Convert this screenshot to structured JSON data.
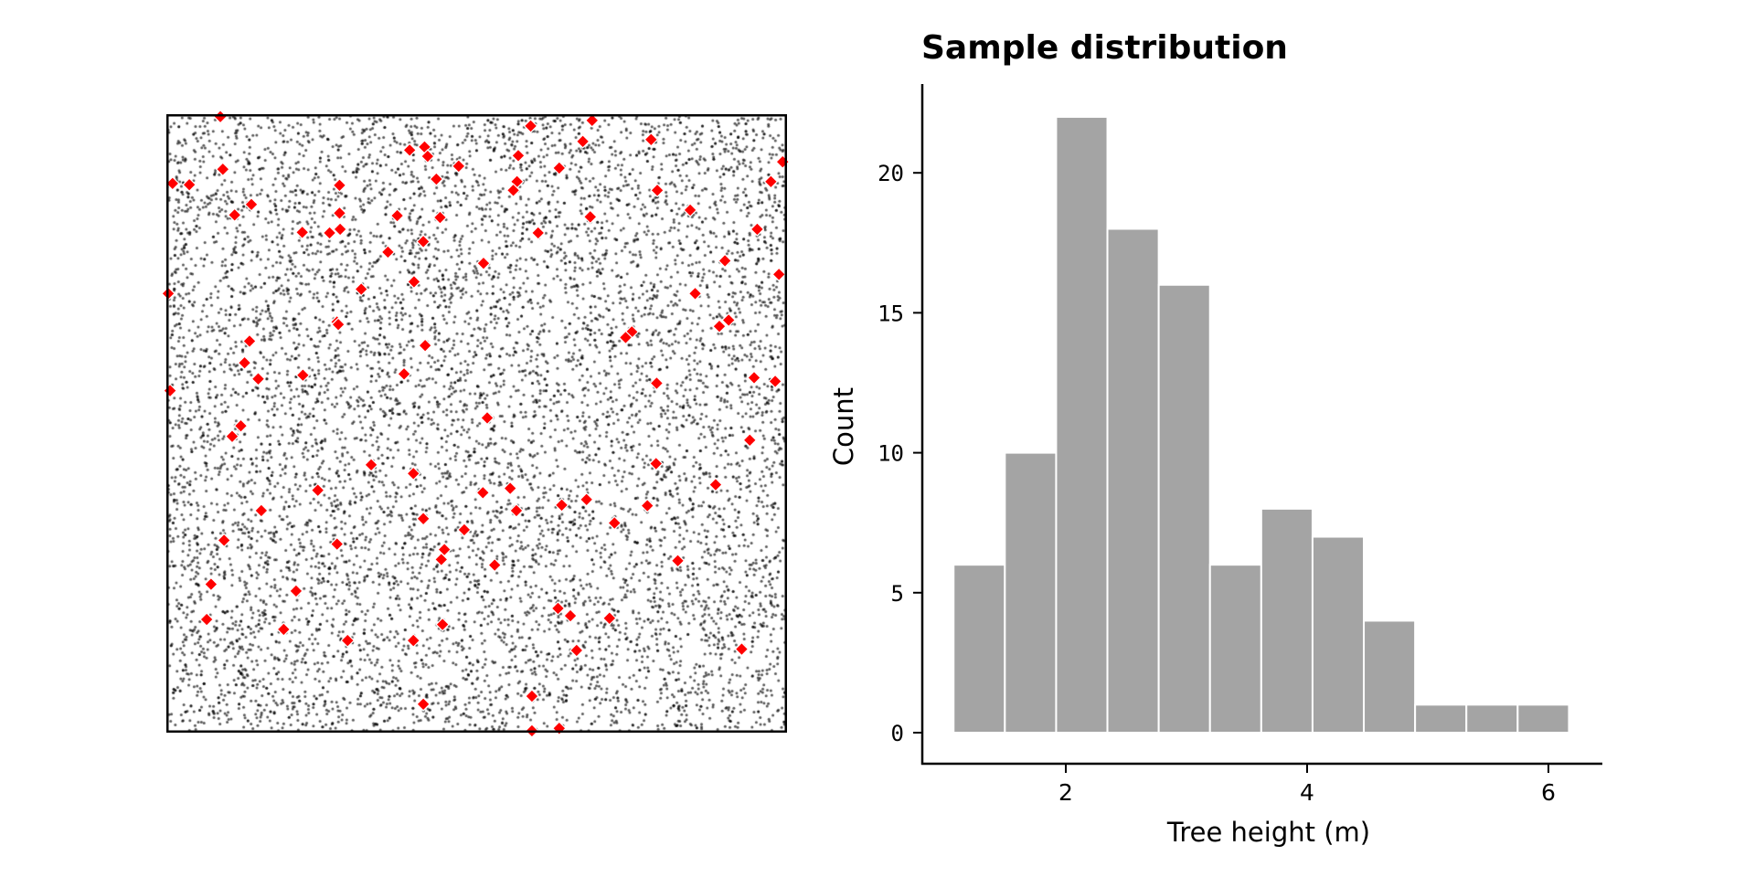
{
  "chart_data": [
    {
      "type": "scatter",
      "title": "",
      "xlabel": "",
      "ylabel": "",
      "xlim": [
        0,
        1
      ],
      "ylim": [
        0,
        1
      ],
      "axes_ticks": false,
      "background_points": {
        "description_count_approx": 9000,
        "color": "#000000",
        "opacity": 0.65
      },
      "series": [
        {
          "name": "sampled trees",
          "marker": "diamond",
          "color": "#ff0000",
          "edgecolor": "#ffffff",
          "points": [
            [
              0.087,
              0.996
            ],
            [
              0.392,
              0.942
            ],
            [
              0.416,
              0.947
            ],
            [
              0.421,
              0.932
            ],
            [
              0.471,
              0.916
            ],
            [
              0.091,
              0.911
            ],
            [
              0.01,
              0.888
            ],
            [
              0.037,
              0.886
            ],
            [
              0.279,
              0.885
            ],
            [
              0.435,
              0.895
            ],
            [
              0.137,
              0.854
            ],
            [
              0.11,
              0.837
            ],
            [
              0.279,
              0.84
            ],
            [
              0.372,
              0.836
            ],
            [
              0.441,
              0.833
            ],
            [
              0.219,
              0.809
            ],
            [
              0.263,
              0.808
            ],
            [
              0.28,
              0.814
            ],
            [
              0.414,
              0.794
            ],
            [
              0.357,
              0.777
            ],
            [
              0.399,
              0.729
            ],
            [
              0.314,
              0.717
            ],
            [
              0.003,
              0.71
            ],
            [
              0.275,
              0.664
            ],
            [
              0.277,
              0.66
            ],
            [
              0.134,
              0.633
            ],
            [
              0.417,
              0.626
            ],
            [
              0.126,
              0.598
            ],
            [
              0.148,
              0.572
            ],
            [
              0.22,
              0.578
            ],
            [
              0.383,
              0.58
            ],
            [
              0.006,
              0.553
            ],
            [
              0.587,
              0.981
            ],
            [
              0.686,
              0.99
            ],
            [
              0.671,
              0.956
            ],
            [
              0.781,
              0.959
            ],
            [
              0.567,
              0.933
            ],
            [
              0.633,
              0.913
            ],
            [
              0.993,
              0.923
            ],
            [
              0.565,
              0.891
            ],
            [
              0.559,
              0.877
            ],
            [
              0.791,
              0.877
            ],
            [
              0.974,
              0.891
            ],
            [
              0.844,
              0.845
            ],
            [
              0.683,
              0.834
            ],
            [
              0.952,
              0.814
            ],
            [
              0.599,
              0.808
            ],
            [
              0.511,
              0.759
            ],
            [
              0.9,
              0.763
            ],
            [
              0.987,
              0.741
            ],
            [
              0.852,
              0.71
            ],
            [
              0.906,
              0.667
            ],
            [
              0.891,
              0.657
            ],
            [
              0.75,
              0.648
            ],
            [
              0.74,
              0.639
            ],
            [
              0.79,
              0.565
            ],
            [
              0.947,
              0.574
            ],
            [
              0.981,
              0.568
            ],
            [
              0.517,
              0.509
            ],
            [
              0.12,
              0.496
            ],
            [
              0.106,
              0.479
            ],
            [
              0.33,
              0.433
            ],
            [
              0.398,
              0.419
            ],
            [
              0.244,
              0.392
            ],
            [
              0.153,
              0.359
            ],
            [
              0.414,
              0.346
            ],
            [
              0.48,
              0.328
            ],
            [
              0.093,
              0.311
            ],
            [
              0.275,
              0.305
            ],
            [
              0.448,
              0.296
            ],
            [
              0.443,
              0.28
            ],
            [
              0.072,
              0.24
            ],
            [
              0.209,
              0.229
            ],
            [
              0.065,
              0.183
            ],
            [
              0.189,
              0.167
            ],
            [
              0.292,
              0.149
            ],
            [
              0.398,
              0.149
            ],
            [
              0.445,
              0.175
            ],
            [
              0.414,
              0.046
            ],
            [
              0.94,
              0.473
            ],
            [
              0.789,
              0.435
            ],
            [
              0.885,
              0.401
            ],
            [
              0.51,
              0.388
            ],
            [
              0.554,
              0.395
            ],
            [
              0.564,
              0.359
            ],
            [
              0.637,
              0.368
            ],
            [
              0.677,
              0.377
            ],
            [
              0.775,
              0.367
            ],
            [
              0.722,
              0.339
            ],
            [
              0.529,
              0.271
            ],
            [
              0.824,
              0.278
            ],
            [
              0.631,
              0.201
            ],
            [
              0.651,
              0.189
            ],
            [
              0.714,
              0.185
            ],
            [
              0.661,
              0.133
            ],
            [
              0.927,
              0.135
            ],
            [
              0.589,
              0.059
            ],
            [
              0.589,
              0.003
            ],
            [
              0.633,
              0.007
            ]
          ]
        }
      ]
    },
    {
      "type": "bar",
      "subtype": "histogram",
      "title": "Sample distribution",
      "xlabel": "Tree height (m)",
      "ylabel": "Count",
      "bin_start": 1.07,
      "bin_width": 0.425,
      "values": [
        6,
        10,
        22,
        18,
        16,
        6,
        8,
        7,
        4,
        1,
        1,
        1
      ],
      "xlim": [
        0.8,
        6.6
      ],
      "ylim": [
        -1.1,
        23.1
      ],
      "xticks": [
        2,
        4,
        6
      ],
      "xtick_labels": [
        "2",
        "4",
        "6"
      ],
      "yticks": [
        0,
        5,
        10,
        15,
        20
      ],
      "ytick_labels": [
        "0",
        "5",
        "10",
        "15",
        "20"
      ],
      "bar_color": "#a4a4a4",
      "edge_color": "#ffffff",
      "grid": false
    }
  ]
}
